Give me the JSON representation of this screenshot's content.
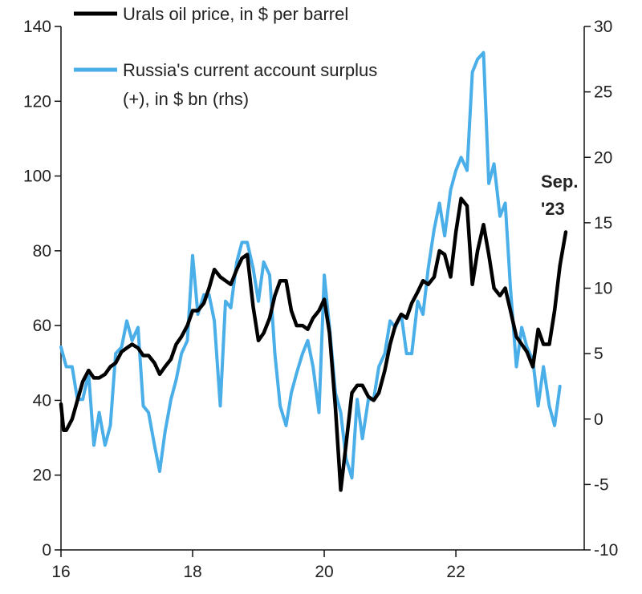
{
  "chart_data": {
    "type": "line",
    "title": "",
    "xlabel": "",
    "ylabel": "",
    "x_axis": {
      "range": [
        2016,
        2023.95
      ],
      "ticks": [
        2016,
        2018,
        2020,
        2022
      ],
      "tick_labels": [
        "16",
        "18",
        "20",
        "22"
      ]
    },
    "y_left": {
      "range": [
        0,
        140
      ],
      "ticks": [
        0,
        20,
        40,
        60,
        80,
        100,
        120,
        140
      ],
      "tick_labels": [
        "0",
        "20",
        "40",
        "60",
        "80",
        "100",
        "120",
        "140"
      ]
    },
    "y_right": {
      "range": [
        -10,
        30
      ],
      "ticks": [
        -10,
        -5,
        0,
        5,
        10,
        15,
        20,
        25,
        30
      ],
      "tick_labels": [
        "-10",
        "-5",
        "0",
        "5",
        "10",
        "15",
        "20",
        "25",
        "30"
      ]
    },
    "grid": false,
    "legend_position": "top-left",
    "annotation": {
      "lines": [
        "Sep.",
        "'23"
      ]
    },
    "series": [
      {
        "name": "Urals oil price, in $ per barrel",
        "axis": "left",
        "color": "#000000",
        "points": [
          [
            2016.0,
            39
          ],
          [
            2016.04,
            32
          ],
          [
            2016.08,
            32
          ],
          [
            2016.17,
            35
          ],
          [
            2016.25,
            40
          ],
          [
            2016.33,
            45
          ],
          [
            2016.42,
            48
          ],
          [
            2016.5,
            46
          ],
          [
            2016.58,
            46
          ],
          [
            2016.67,
            47
          ],
          [
            2016.75,
            49
          ],
          [
            2016.83,
            50
          ],
          [
            2016.92,
            53
          ],
          [
            2017.0,
            54
          ],
          [
            2017.08,
            55
          ],
          [
            2017.17,
            54
          ],
          [
            2017.25,
            52
          ],
          [
            2017.33,
            52
          ],
          [
            2017.42,
            50
          ],
          [
            2017.5,
            47
          ],
          [
            2017.58,
            49
          ],
          [
            2017.67,
            51
          ],
          [
            2017.75,
            55
          ],
          [
            2017.83,
            57
          ],
          [
            2017.92,
            60
          ],
          [
            2018.0,
            64
          ],
          [
            2018.08,
            64
          ],
          [
            2018.17,
            66
          ],
          [
            2018.25,
            70
          ],
          [
            2018.33,
            75
          ],
          [
            2018.42,
            73
          ],
          [
            2018.5,
            72
          ],
          [
            2018.58,
            71
          ],
          [
            2018.67,
            75
          ],
          [
            2018.75,
            78
          ],
          [
            2018.83,
            79
          ],
          [
            2018.92,
            65
          ],
          [
            2019.0,
            56
          ],
          [
            2019.08,
            58
          ],
          [
            2019.17,
            62
          ],
          [
            2019.25,
            68
          ],
          [
            2019.33,
            72
          ],
          [
            2019.42,
            72
          ],
          [
            2019.5,
            64
          ],
          [
            2019.58,
            60
          ],
          [
            2019.67,
            60
          ],
          [
            2019.75,
            59
          ],
          [
            2019.83,
            62
          ],
          [
            2019.92,
            64
          ],
          [
            2020.0,
            67
          ],
          [
            2020.08,
            58
          ],
          [
            2020.17,
            38
          ],
          [
            2020.25,
            16
          ],
          [
            2020.33,
            28
          ],
          [
            2020.42,
            42
          ],
          [
            2020.5,
            44
          ],
          [
            2020.58,
            44
          ],
          [
            2020.67,
            41
          ],
          [
            2020.75,
            40
          ],
          [
            2020.83,
            42
          ],
          [
            2020.92,
            48
          ],
          [
            2021.0,
            55
          ],
          [
            2021.08,
            60
          ],
          [
            2021.17,
            63
          ],
          [
            2021.25,
            62
          ],
          [
            2021.33,
            66
          ],
          [
            2021.42,
            69
          ],
          [
            2021.5,
            72
          ],
          [
            2021.58,
            71
          ],
          [
            2021.67,
            73
          ],
          [
            2021.75,
            80
          ],
          [
            2021.83,
            79
          ],
          [
            2021.92,
            73
          ],
          [
            2022.0,
            85
          ],
          [
            2022.08,
            94
          ],
          [
            2022.17,
            92
          ],
          [
            2022.25,
            71
          ],
          [
            2022.33,
            80
          ],
          [
            2022.42,
            87
          ],
          [
            2022.5,
            79
          ],
          [
            2022.58,
            70
          ],
          [
            2022.67,
            68
          ],
          [
            2022.75,
            70
          ],
          [
            2022.83,
            64
          ],
          [
            2022.92,
            57
          ],
          [
            2023.0,
            55
          ],
          [
            2023.08,
            53
          ],
          [
            2023.17,
            49
          ],
          [
            2023.25,
            59
          ],
          [
            2023.33,
            55
          ],
          [
            2023.42,
            55
          ],
          [
            2023.5,
            64
          ],
          [
            2023.58,
            76
          ],
          [
            2023.67,
            85
          ]
        ]
      },
      {
        "name": "Russia's current account surplus (+), in $ bn (rhs)",
        "legend_lines": [
          "Russia's current account surplus",
          "(+), in $ bn (rhs)"
        ],
        "axis": "right",
        "color": "#4aaee8",
        "points": [
          [
            2016.0,
            5.5
          ],
          [
            2016.08,
            4.0
          ],
          [
            2016.17,
            4.0
          ],
          [
            2016.25,
            1.5
          ],
          [
            2016.33,
            1.5
          ],
          [
            2016.42,
            3.5
          ],
          [
            2016.5,
            -2.0
          ],
          [
            2016.58,
            0.5
          ],
          [
            2016.67,
            -2.0
          ],
          [
            2016.75,
            -0.5
          ],
          [
            2016.83,
            5.0
          ],
          [
            2016.92,
            5.5
          ],
          [
            2017.0,
            7.5
          ],
          [
            2017.08,
            6.0
          ],
          [
            2017.17,
            7.0
          ],
          [
            2017.25,
            1.0
          ],
          [
            2017.33,
            0.5
          ],
          [
            2017.42,
            -2.0
          ],
          [
            2017.5,
            -4.0
          ],
          [
            2017.58,
            -1.0
          ],
          [
            2017.67,
            1.5
          ],
          [
            2017.75,
            3.0
          ],
          [
            2017.83,
            5.0
          ],
          [
            2017.92,
            6.0
          ],
          [
            2018.0,
            12.5
          ],
          [
            2018.08,
            8.0
          ],
          [
            2018.17,
            9.5
          ],
          [
            2018.25,
            9.5
          ],
          [
            2018.33,
            7.5
          ],
          [
            2018.42,
            1.0
          ],
          [
            2018.5,
            9.0
          ],
          [
            2018.58,
            8.5
          ],
          [
            2018.67,
            12.0
          ],
          [
            2018.75,
            13.5
          ],
          [
            2018.83,
            13.5
          ],
          [
            2018.92,
            11.5
          ],
          [
            2019.0,
            9.0
          ],
          [
            2019.08,
            12.0
          ],
          [
            2019.17,
            11.0
          ],
          [
            2019.25,
            5.0
          ],
          [
            2019.33,
            1.0
          ],
          [
            2019.42,
            -0.5
          ],
          [
            2019.5,
            2.0
          ],
          [
            2019.58,
            3.5
          ],
          [
            2019.67,
            5.0
          ],
          [
            2019.75,
            6.0
          ],
          [
            2019.83,
            4.0
          ],
          [
            2019.92,
            0.5
          ],
          [
            2020.0,
            11.0
          ],
          [
            2020.08,
            7.0
          ],
          [
            2020.17,
            2.0
          ],
          [
            2020.25,
            0.5
          ],
          [
            2020.33,
            -3.0
          ],
          [
            2020.42,
            -4.5
          ],
          [
            2020.5,
            1.5
          ],
          [
            2020.58,
            -1.5
          ],
          [
            2020.67,
            1.5
          ],
          [
            2020.75,
            1.5
          ],
          [
            2020.83,
            4.0
          ],
          [
            2020.92,
            5.0
          ],
          [
            2021.0,
            7.5
          ],
          [
            2021.08,
            7.0
          ],
          [
            2021.17,
            8.0
          ],
          [
            2021.25,
            5.0
          ],
          [
            2021.33,
            5.0
          ],
          [
            2021.42,
            9.0
          ],
          [
            2021.5,
            8.0
          ],
          [
            2021.58,
            11.5
          ],
          [
            2021.67,
            14.5
          ],
          [
            2021.75,
            16.5
          ],
          [
            2021.83,
            14.0
          ],
          [
            2021.92,
            17.5
          ],
          [
            2022.0,
            19.0
          ],
          [
            2022.08,
            20.0
          ],
          [
            2022.17,
            19.0
          ],
          [
            2022.25,
            26.5
          ],
          [
            2022.33,
            27.5
          ],
          [
            2022.42,
            28.0
          ],
          [
            2022.5,
            18.0
          ],
          [
            2022.58,
            19.5
          ],
          [
            2022.67,
            15.5
          ],
          [
            2022.75,
            16.5
          ],
          [
            2022.83,
            10.0
          ],
          [
            2022.92,
            4.0
          ],
          [
            2023.0,
            7.0
          ],
          [
            2023.08,
            5.5
          ],
          [
            2023.17,
            4.5
          ],
          [
            2023.25,
            1.0
          ],
          [
            2023.33,
            4.0
          ],
          [
            2023.42,
            1.0
          ],
          [
            2023.5,
            -0.5
          ],
          [
            2023.58,
            2.5
          ]
        ]
      }
    ]
  }
}
